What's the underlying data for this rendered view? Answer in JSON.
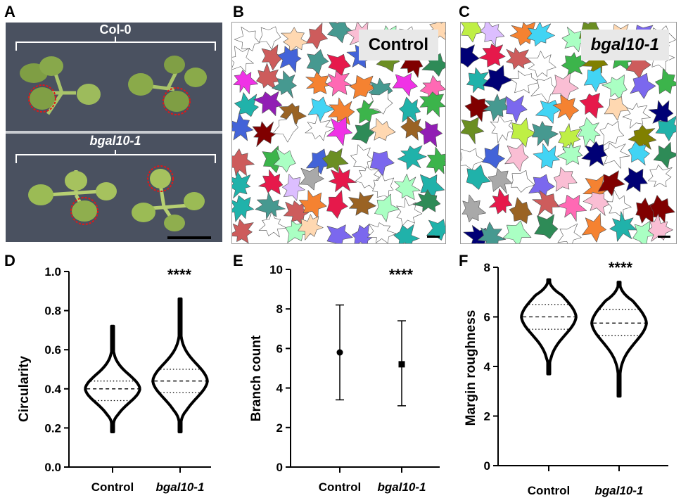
{
  "panels": {
    "A": {
      "label": "A",
      "top_group": "Col-0",
      "bottom_group": "bgal10-1",
      "colors": {
        "background": "#4a5160",
        "leaf": "#8fae4e",
        "circle": "#e01818"
      }
    },
    "B": {
      "label": "B",
      "tag": "Control"
    },
    "C": {
      "label": "C",
      "tag": "bgal10-1"
    },
    "D": {
      "label": "D"
    },
    "E": {
      "label": "E"
    },
    "F": {
      "label": "F"
    }
  },
  "chart_data": [
    {
      "type": "violin",
      "panel": "D",
      "ylabel": "Circularity",
      "xlabel": "",
      "categories": [
        "Control",
        "bgal10-1"
      ],
      "ylim": [
        0.0,
        1.0
      ],
      "yticks": [
        "0.0",
        "0.2",
        "0.4",
        "0.6",
        "0.8",
        "1.0"
      ],
      "significance": "****",
      "series": [
        {
          "min": 0.18,
          "q1": 0.34,
          "median": 0.4,
          "q3": 0.44,
          "max": 0.72
        },
        {
          "min": 0.18,
          "q1": 0.38,
          "median": 0.44,
          "q3": 0.5,
          "max": 0.86
        }
      ]
    },
    {
      "type": "errorbar",
      "panel": "E",
      "ylabel": "Branch count",
      "xlabel": "",
      "categories": [
        "Control",
        "bgal10-1"
      ],
      "ylim": [
        0,
        10
      ],
      "yticks": [
        "0",
        "2",
        "4",
        "6",
        "8",
        "10"
      ],
      "significance": "****",
      "series": [
        {
          "mean": 5.8,
          "low": 3.4,
          "high": 8.2,
          "marker": "circle"
        },
        {
          "mean": 5.2,
          "low": 3.1,
          "high": 7.4,
          "marker": "square"
        }
      ]
    },
    {
      "type": "violin",
      "panel": "F",
      "ylabel": "Margin roughness",
      "xlabel": "",
      "categories": [
        "Control",
        "bgal10-1"
      ],
      "ylim": [
        0,
        8
      ],
      "yticks": [
        "0",
        "2",
        "4",
        "6",
        "8"
      ],
      "significance": "****",
      "series": [
        {
          "min": 3.7,
          "q1": 5.5,
          "median": 6.0,
          "q3": 6.5,
          "max": 7.5
        },
        {
          "min": 2.8,
          "q1": 5.25,
          "median": 5.75,
          "q3": 6.3,
          "max": 7.4
        }
      ]
    }
  ]
}
